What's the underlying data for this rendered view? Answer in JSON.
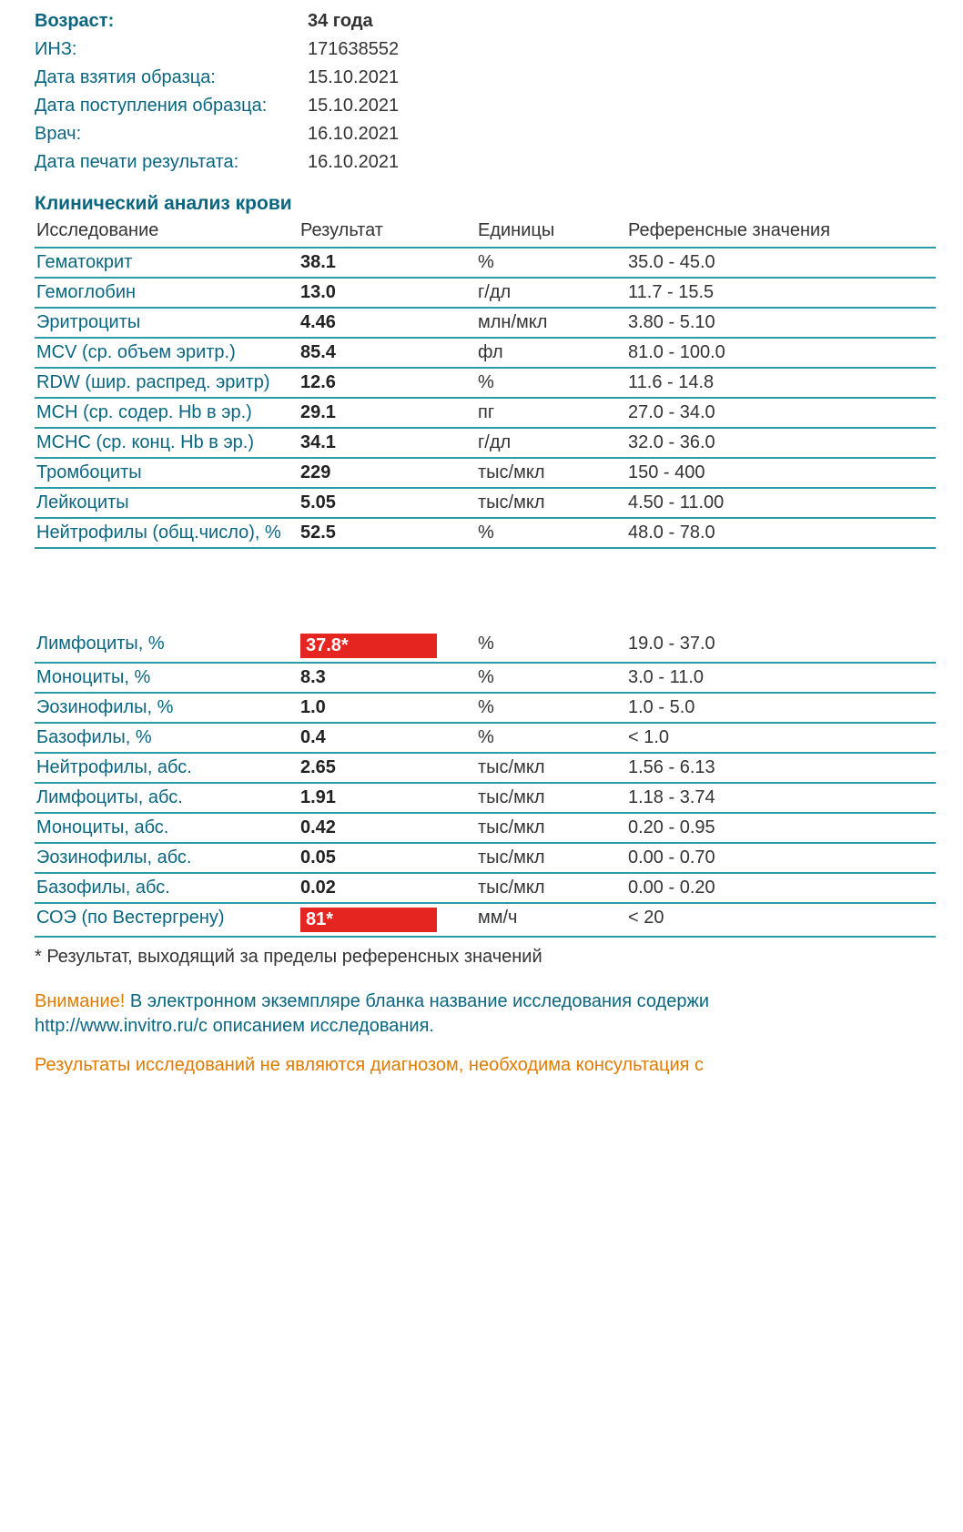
{
  "colors": {
    "teal_text": "#0a6680",
    "teal_border": "#2b9ba8",
    "flag_bg": "#e52520",
    "flag_text": "#ffffff",
    "warn": "#e07b00",
    "body": "#333333",
    "bg": "#ffffff"
  },
  "meta": {
    "rows": [
      {
        "label": "Возраст:",
        "value": "34 года",
        "bold": true
      },
      {
        "label": "ИНЗ:",
        "value": "171638552",
        "bold": false
      },
      {
        "label": "Дата взятия образца:",
        "value": "15.10.2021",
        "bold": false
      },
      {
        "label": "Дата поступления образца:",
        "value": "15.10.2021",
        "bold": false
      },
      {
        "label": "Врач:",
        "value": "16.10.2021",
        "bold": false
      },
      {
        "label": "Дата печати результата:",
        "value": "16.10.2021",
        "bold": false
      }
    ]
  },
  "section_title": "Клинический анализ крови",
  "table": {
    "headers": {
      "name": "Исследование",
      "result": "Результат",
      "units": "Единицы",
      "ref": "Референсные значения"
    },
    "rows_a": [
      {
        "name": "Гематокрит",
        "result": "38.1",
        "units": "%",
        "ref": "35.0 - 45.0",
        "flag": false
      },
      {
        "name": "Гемоглобин",
        "result": "13.0",
        "units": "г/дл",
        "ref": "11.7 - 15.5",
        "flag": false
      },
      {
        "name": "Эритроциты",
        "result": "4.46",
        "units": "млн/мкл",
        "ref": "3.80 - 5.10",
        "flag": false
      },
      {
        "name": "MCV (ср. объем эритр.)",
        "result": "85.4",
        "units": "фл",
        "ref": "81.0 - 100.0",
        "flag": false
      },
      {
        "name": "RDW (шир. распред. эритр)",
        "result": "12.6",
        "units": "%",
        "ref": "11.6 - 14.8",
        "flag": false
      },
      {
        "name": "MCH (ср. содер. Hb в эр.)",
        "result": "29.1",
        "units": "пг",
        "ref": "27.0 - 34.0",
        "flag": false
      },
      {
        "name": "MCHC (ср. конц. Hb в эр.)",
        "result": "34.1",
        "units": "г/дл",
        "ref": "32.0 - 36.0",
        "flag": false
      },
      {
        "name": "Тромбоциты",
        "result": "229",
        "units": "тыс/мкл",
        "ref": "150 - 400",
        "flag": false
      },
      {
        "name": "Лейкоциты",
        "result": "5.05",
        "units": "тыс/мкл",
        "ref": "4.50 - 11.00",
        "flag": false
      },
      {
        "name": "Нейтрофилы (общ.число), %",
        "result": "52.5",
        "units": "%",
        "ref": "48.0 - 78.0",
        "flag": false
      }
    ],
    "rows_b": [
      {
        "name": "Лимфоциты, %",
        "result": "37.8*",
        "units": "%",
        "ref": "19.0 - 37.0",
        "flag": true
      },
      {
        "name": "Моноциты, %",
        "result": "8.3",
        "units": "%",
        "ref": "3.0 - 11.0",
        "flag": false
      },
      {
        "name": "Эозинофилы, %",
        "result": "1.0",
        "units": "%",
        "ref": "1.0 - 5.0",
        "flag": false
      },
      {
        "name": "Базофилы, %",
        "result": "0.4",
        "units": "%",
        "ref": "< 1.0",
        "flag": false
      },
      {
        "name": "Нейтрофилы, абс.",
        "result": "2.65",
        "units": "тыс/мкл",
        "ref": "1.56 - 6.13",
        "flag": false
      },
      {
        "name": "Лимфоциты, абс.",
        "result": "1.91",
        "units": "тыс/мкл",
        "ref": "1.18 - 3.74",
        "flag": false
      },
      {
        "name": "Моноциты, абс.",
        "result": "0.42",
        "units": "тыс/мкл",
        "ref": "0.20 - 0.95",
        "flag": false
      },
      {
        "name": "Эозинофилы, абс.",
        "result": "0.05",
        "units": "тыс/мкл",
        "ref": "0.00 - 0.70",
        "flag": false
      },
      {
        "name": "Базофилы, абс.",
        "result": "0.02",
        "units": "тыс/мкл",
        "ref": "0.00 - 0.20",
        "flag": false
      },
      {
        "name": "СОЭ (по Вестергрену)",
        "result": "81*",
        "units": "мм/ч",
        "ref": "< 20",
        "flag": true
      }
    ]
  },
  "footnote": "* Результат, выходящий за пределы референсных значений",
  "notice": {
    "warn": "Внимание!",
    "text1": " В электронном экземпляре бланка название исследования содержи",
    "text2": "http://www.invitro.ru/с описанием исследования."
  },
  "disclaimer": "Результаты исследований не являются диагнозом, необходима консультация с"
}
